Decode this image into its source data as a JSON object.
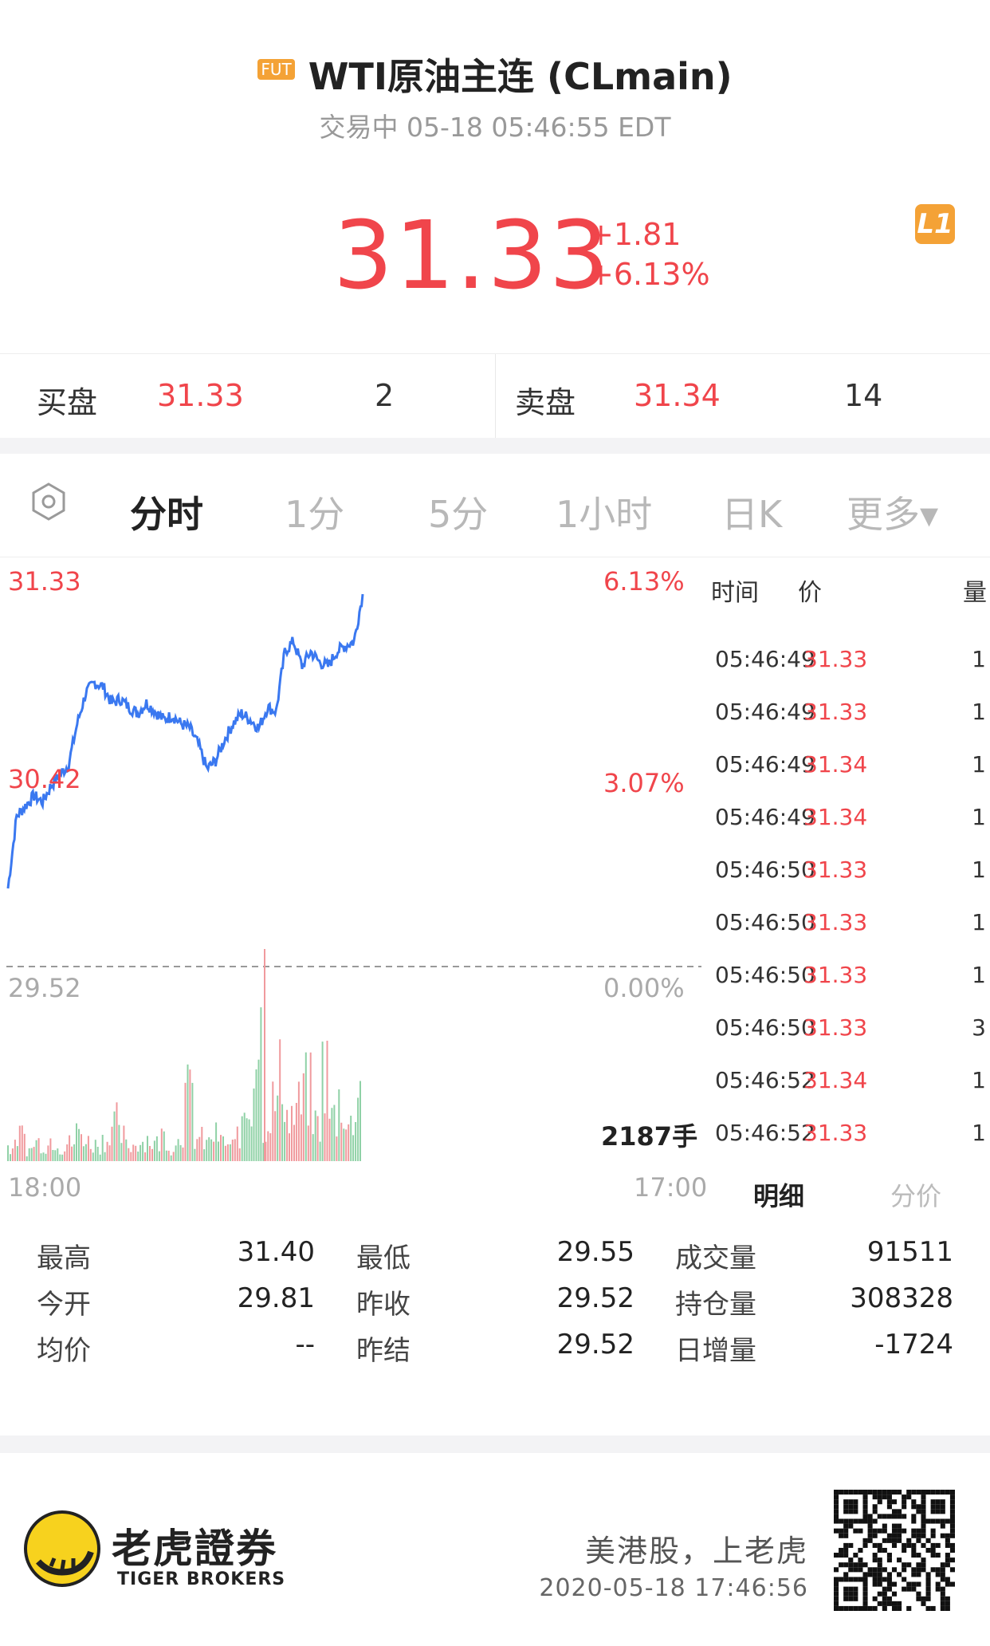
{
  "header": {
    "badge": "FUT",
    "title": "WTI原油主连 (CLmain)",
    "subtitle": "交易中 05-18 05:46:55 EDT",
    "price": "31.33",
    "change_abs": "+1.81",
    "change_pct": "+6.13%",
    "level_badge": "L1"
  },
  "bidask": {
    "bid_label": "买盘",
    "bid_price": "31.33",
    "bid_qty": "2",
    "ask_label": "卖盘",
    "ask_price": "31.34",
    "ask_qty": "14"
  },
  "tabs": [
    "分时",
    "1分",
    "5分",
    "1小时",
    "日K",
    "更多▾"
  ],
  "chart": {
    "price_high": "31.33",
    "pct_high": "6.13%",
    "price_mid": "30.42",
    "pct_mid": "3.07%",
    "price_base": "29.52",
    "pct_base": "0.00%",
    "volume_label": "2187手",
    "time_start": "18:00",
    "time_end": "17:00"
  },
  "chart_data": {
    "type": "line",
    "ylim": [
      29.52,
      31.33
    ],
    "x_range": [
      "18:00",
      "17:00"
    ],
    "series": [
      {
        "values": [
          29.9,
          30.25,
          30.3,
          30.35,
          30.32,
          30.4,
          30.45,
          30.5,
          30.7,
          30.85,
          30.9,
          30.88,
          30.8,
          30.82,
          30.78,
          30.75,
          30.8,
          30.76,
          30.72,
          30.74,
          30.7,
          30.68,
          30.6,
          30.48,
          30.52,
          30.62,
          30.7,
          30.75,
          30.72,
          30.68,
          30.78,
          30.76,
          31.05,
          31.1,
          30.98,
          31.05,
          31.0,
          30.98,
          31.05,
          31.08,
          31.1,
          31.33
        ]
      }
    ],
    "volume": [
      22,
      40,
      18,
      30,
      25,
      35,
      20,
      28,
      45,
      30,
      26,
      33,
      60,
      38,
      24,
      30,
      35,
      28,
      40,
      22,
      50,
      100,
      35,
      28,
      40,
      30,
      25,
      45,
      80,
      200,
      60,
      90,
      130,
      70,
      85,
      110,
      60,
      140,
      70,
      95,
      55,
      115
    ]
  },
  "trades": {
    "header_time": "时间",
    "header_price": "价",
    "header_vol": "量",
    "rows": [
      {
        "time": "05:46:49",
        "price": "31.33",
        "vol": "1"
      },
      {
        "time": "05:46:49",
        "price": "31.33",
        "vol": "1"
      },
      {
        "time": "05:46:49",
        "price": "31.34",
        "vol": "1"
      },
      {
        "time": "05:46:49",
        "price": "31.34",
        "vol": "1"
      },
      {
        "time": "05:46:50",
        "price": "31.33",
        "vol": "1"
      },
      {
        "time": "05:46:50",
        "price": "31.33",
        "vol": "1"
      },
      {
        "time": "05:46:50",
        "price": "31.33",
        "vol": "1"
      },
      {
        "time": "05:46:50",
        "price": "31.33",
        "vol": "3"
      },
      {
        "time": "05:46:52",
        "price": "31.34",
        "vol": "1"
      },
      {
        "time": "05:46:52",
        "price": "31.33",
        "vol": "1"
      }
    ],
    "tab_detail": "明细",
    "tab_price": "分价"
  },
  "stats": [
    {
      "label": "最高",
      "value": "31.40"
    },
    {
      "label": "最低",
      "value": "29.55"
    },
    {
      "label": "成交量",
      "value": "91511"
    },
    {
      "label": "今开",
      "value": "29.81"
    },
    {
      "label": "昨收",
      "value": "29.52"
    },
    {
      "label": "持仓量",
      "value": "308328"
    },
    {
      "label": "均价",
      "value": "--"
    },
    {
      "label": "昨结",
      "value": "29.52"
    },
    {
      "label": "日增量",
      "value": "-1724"
    }
  ],
  "footer": {
    "brand_cn": "老虎證券",
    "brand_en": "TIGER BROKERS",
    "slogan": "美港股，上老虎",
    "timestamp": "2020-05-18 17:46:56"
  },
  "colors": {
    "up": "#f0454b",
    "line": "#3a78f0",
    "badge": "#f4a236"
  }
}
